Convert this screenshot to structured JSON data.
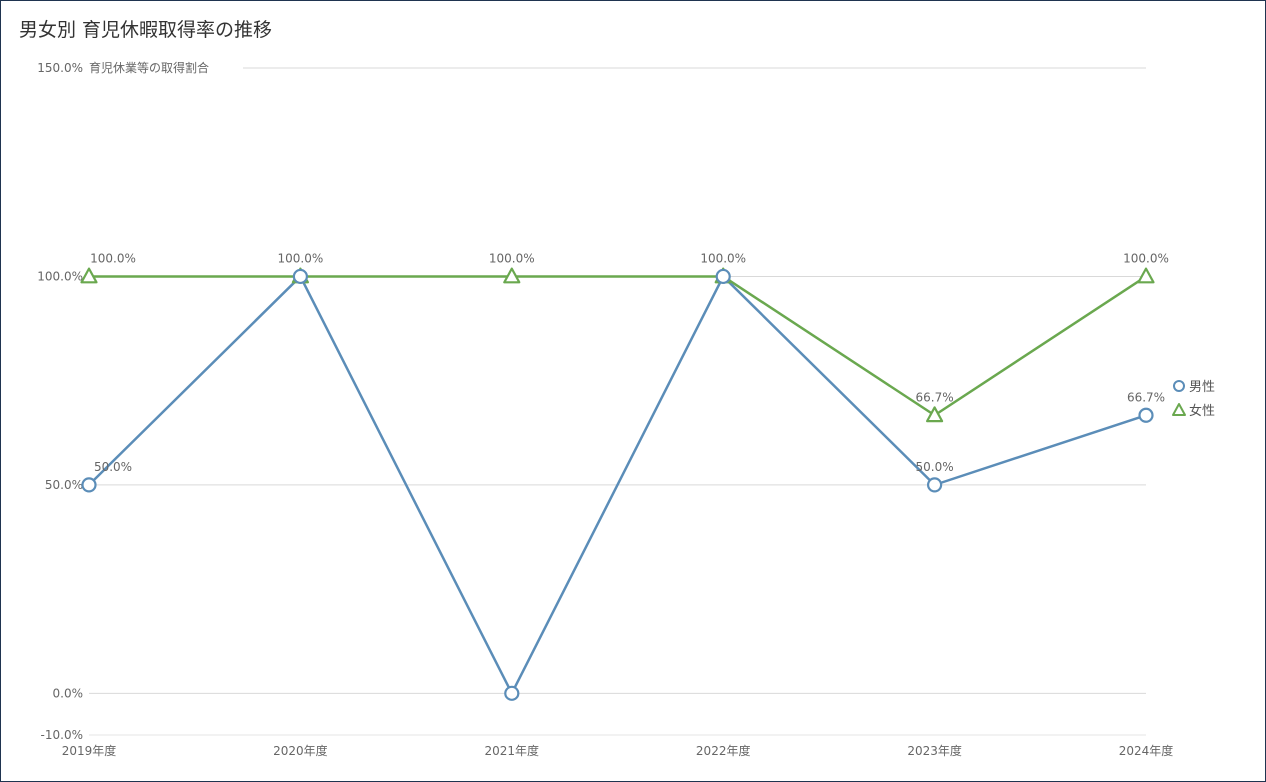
{
  "chart_data": {
    "type": "line",
    "title": "男女別 育児休暇取得率の推移",
    "ylabel": "育児休業等の取得割合",
    "categories": [
      "2019年度",
      "2020年度",
      "2021年度",
      "2022年度",
      "2023年度",
      "2024年度"
    ],
    "ylim": [
      -10,
      150
    ],
    "yticks": [
      {
        "value": 150,
        "label": "150.0%"
      },
      {
        "value": 100,
        "label": "100.0%"
      },
      {
        "value": 50,
        "label": "50.0%"
      },
      {
        "value": 0,
        "label": "0.0%"
      },
      {
        "value": -10,
        "label": "-10.0%"
      }
    ],
    "grid": true,
    "legend_position": "right",
    "series": [
      {
        "name": "男性",
        "marker": "circle",
        "color": "#5b8db8",
        "values": [
          50.0,
          100.0,
          0.0,
          100.0,
          50.0,
          66.7
        ],
        "labels": [
          "50.0%",
          "",
          "",
          "",
          "50.0%",
          "66.7%"
        ]
      },
      {
        "name": "女性",
        "marker": "triangle",
        "color": "#6aa84f",
        "values": [
          100.0,
          100.0,
          100.0,
          100.0,
          66.7,
          100.0
        ],
        "labels": [
          "100.0%",
          "100.0%",
          "100.0%",
          "100.0%",
          "66.7%",
          "100.0%"
        ]
      }
    ]
  }
}
